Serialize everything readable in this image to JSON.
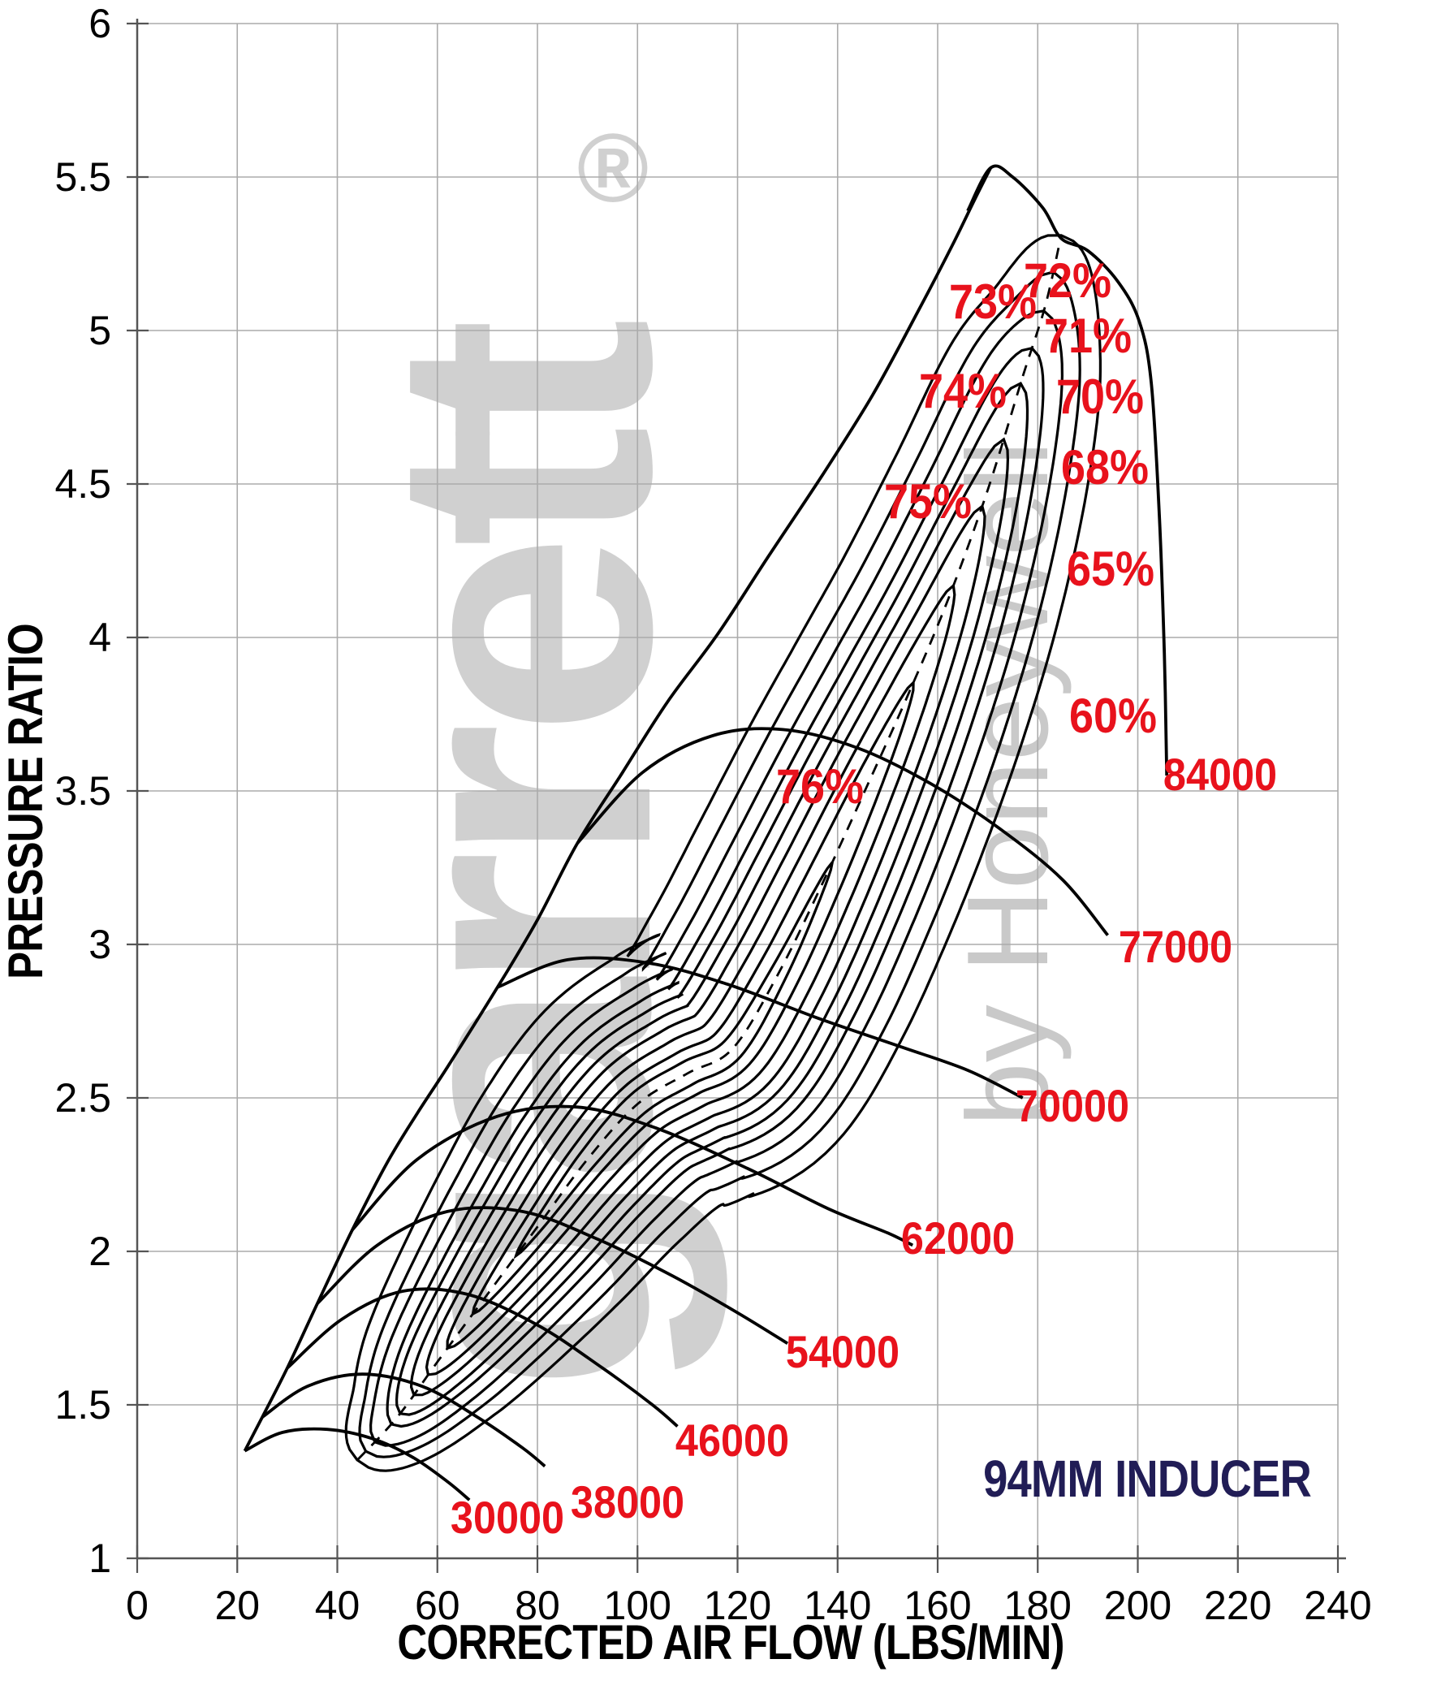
{
  "annotation": {
    "text": "94MM INDUCER"
  },
  "watermark": {
    "brand": "garrett",
    "registered": "®",
    "sub": "by Honeywell"
  },
  "chart_data": {
    "type": "line",
    "title": "",
    "xlabel": "CORRECTED AIR FLOW (LBS/MIN)",
    "ylabel": "PRESSURE RATIO",
    "xlim": [
      0,
      240
    ],
    "ylim": [
      1,
      6
    ],
    "x_ticks": [
      0,
      20,
      40,
      60,
      80,
      100,
      120,
      140,
      160,
      180,
      200,
      220,
      240
    ],
    "y_ticks": [
      1,
      1.5,
      2,
      2.5,
      3,
      3.5,
      4,
      4.5,
      5,
      5.5,
      6
    ],
    "grid": true,
    "legend": "none",
    "colors": {
      "curve": "#000000",
      "label_red": "#e8121c",
      "annotation_navy": "#211d56",
      "grid": "#ababab",
      "axis": "#555555",
      "watermark": "#d0d0d0"
    },
    "surge_line": [
      [
        21.5,
        1.35
      ],
      [
        25,
        1.46
      ],
      [
        30,
        1.62
      ],
      [
        36,
        1.83
      ],
      [
        43,
        2.07
      ],
      [
        50,
        2.29
      ],
      [
        56,
        2.45
      ],
      [
        62,
        2.6
      ],
      [
        72,
        2.86
      ],
      [
        80,
        3.08
      ],
      [
        88,
        3.33
      ],
      [
        97,
        3.56
      ],
      [
        106,
        3.79
      ],
      [
        116,
        4.01
      ],
      [
        126,
        4.26
      ],
      [
        137,
        4.53
      ],
      [
        147,
        4.79
      ],
      [
        156,
        5.06
      ],
      [
        163,
        5.28
      ],
      [
        167.5,
        5.43
      ],
      [
        170.6,
        5.53
      ]
    ],
    "speed_lines": [
      {
        "rpm": "30000",
        "label_x": 74,
        "label_pr": 1.13,
        "points": [
          [
            21.5,
            1.35
          ],
          [
            29,
            1.41
          ],
          [
            38,
            1.42
          ],
          [
            47,
            1.39
          ],
          [
            55,
            1.33
          ],
          [
            62,
            1.25
          ],
          [
            66.4,
            1.19
          ]
        ]
      },
      {
        "rpm": "38000",
        "label_x": 98,
        "label_pr": 1.18,
        "points": [
          [
            25,
            1.46
          ],
          [
            34,
            1.56
          ],
          [
            45,
            1.6
          ],
          [
            57,
            1.56
          ],
          [
            68,
            1.46
          ],
          [
            77,
            1.36
          ],
          [
            81.5,
            1.3
          ]
        ]
      },
      {
        "rpm": "46000",
        "label_x": 119,
        "label_pr": 1.38,
        "points": [
          [
            30,
            1.62
          ],
          [
            41,
            1.78
          ],
          [
            53,
            1.87
          ],
          [
            66,
            1.86
          ],
          [
            80,
            1.76
          ],
          [
            93,
            1.62
          ],
          [
            103,
            1.5
          ],
          [
            108,
            1.43
          ]
        ]
      },
      {
        "rpm": "54000",
        "label_x": 141,
        "label_pr": 1.67,
        "points": [
          [
            36,
            1.83
          ],
          [
            48,
            2.02
          ],
          [
            62,
            2.13
          ],
          [
            77,
            2.13
          ],
          [
            92,
            2.04
          ],
          [
            107,
            1.92
          ],
          [
            120,
            1.8
          ],
          [
            130,
            1.7
          ]
        ]
      },
      {
        "rpm": "62000",
        "label_x": 164,
        "label_pr": 2.04,
        "points": [
          [
            43,
            2.07
          ],
          [
            56,
            2.3
          ],
          [
            72,
            2.44
          ],
          [
            88,
            2.47
          ],
          [
            104,
            2.4
          ],
          [
            122,
            2.27
          ],
          [
            138,
            2.14
          ],
          [
            150,
            2.06
          ],
          [
            155,
            2.02
          ]
        ]
      },
      {
        "rpm": "70000",
        "label_x": 187,
        "label_pr": 2.47,
        "points": [
          [
            72,
            2.86
          ],
          [
            86,
            2.95
          ],
          [
            102,
            2.94
          ],
          [
            118,
            2.87
          ],
          [
            136,
            2.76
          ],
          [
            152,
            2.67
          ],
          [
            166,
            2.59
          ],
          [
            177,
            2.5
          ]
        ]
      },
      {
        "rpm": "77000",
        "label_x": 207.5,
        "label_pr": 2.99,
        "points": [
          [
            88,
            3.33
          ],
          [
            101,
            3.56
          ],
          [
            115,
            3.68
          ],
          [
            129,
            3.7
          ],
          [
            144,
            3.64
          ],
          [
            159,
            3.52
          ],
          [
            173,
            3.37
          ],
          [
            185,
            3.21
          ],
          [
            194,
            3.03
          ]
        ]
      },
      {
        "rpm": "84000",
        "label_x": 216.5,
        "label_pr": 3.55,
        "points": [
          [
            166,
            5.39
          ],
          [
            170.6,
            5.53
          ],
          [
            175,
            5.5
          ],
          [
            181,
            5.4
          ],
          [
            184.7,
            5.3
          ],
          [
            190,
            5.26
          ],
          [
            196,
            5.16
          ],
          [
            200.3,
            5.03
          ],
          [
            202.7,
            4.83
          ],
          [
            204.3,
            4.4
          ],
          [
            205.3,
            3.95
          ],
          [
            205.8,
            3.55
          ]
        ]
      }
    ],
    "peak_efficiency_dashed": [
      [
        44,
        1.32
      ],
      [
        52,
        1.46
      ],
      [
        60,
        1.64
      ],
      [
        70,
        1.86
      ],
      [
        80,
        2.08
      ],
      [
        90,
        2.3
      ],
      [
        100,
        2.48
      ],
      [
        110,
        2.58
      ],
      [
        119,
        2.66
      ],
      [
        128,
        2.9
      ],
      [
        137,
        3.2
      ],
      [
        146,
        3.52
      ],
      [
        154,
        3.81
      ],
      [
        162,
        4.12
      ],
      [
        170,
        4.48
      ],
      [
        177,
        4.85
      ],
      [
        181.5,
        5.08
      ],
      [
        184.7,
        5.31
      ]
    ],
    "efficiency_islands": [
      {
        "label": "60%",
        "label_x": 195,
        "label_pr": 3.74,
        "t0": 0.0,
        "t1": 1.0,
        "half_width": 28
      },
      {
        "label": "65%",
        "label_x": 194.5,
        "label_pr": 4.22,
        "t0": 0.015,
        "t1": 0.965,
        "half_width": 24
      },
      {
        "label": "68%",
        "label_x": 193.5,
        "label_pr": 4.55,
        "t0": 0.03,
        "t1": 0.935,
        "half_width": 20.5
      },
      {
        "label": "70%",
        "label_x": 192.5,
        "label_pr": 4.78,
        "t0": 0.05,
        "t1": 0.905,
        "half_width": 17.5
      },
      {
        "label": "71%",
        "label_x": 190,
        "label_pr": 4.98,
        "t0": 0.065,
        "t1": 0.878,
        "half_width": 15
      },
      {
        "label": "72%",
        "label_x": 186,
        "label_pr": 5.16,
        "t0": 0.085,
        "t1": 0.85,
        "half_width": 12.5
      },
      {
        "label": "73%",
        "label_x": 171,
        "label_pr": 5.09,
        "t0": 0.105,
        "t1": 0.815,
        "half_width": 10
      },
      {
        "label": "74%",
        "label_x": 165,
        "label_pr": 4.8,
        "t0": 0.13,
        "t1": 0.775,
        "half_width": 7.3
      },
      {
        "label": "75%",
        "label_x": 158,
        "label_pr": 4.44,
        "t0": 0.16,
        "t1": 0.715,
        "half_width": 4.6
      },
      {
        "label": "76%",
        "label_x": 136.5,
        "label_pr": 3.51,
        "t0": 0.21,
        "t1": 0.6,
        "half_width": 2.4
      }
    ],
    "annotation": {
      "text": "94MM INDUCER",
      "x": 202,
      "pr": 1.27
    }
  }
}
